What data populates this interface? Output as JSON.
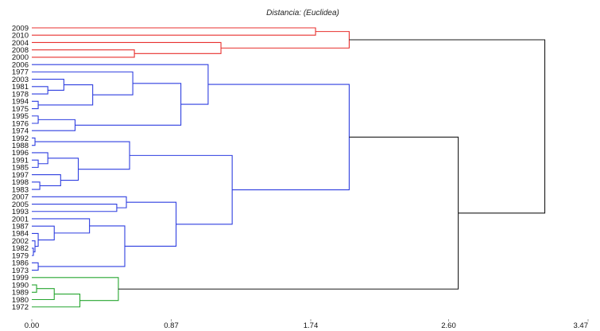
{
  "title": "Distancia: (Euclidea)",
  "colors": {
    "red": "#e8312f",
    "blue": "#2f3fe0",
    "green": "#27a630",
    "black": "#1a1a1a"
  },
  "chart_data": {
    "type": "dendrogram",
    "title": "Distancia: (Euclidea)",
    "xlim": [
      0,
      3.47
    ],
    "xticks": [
      "0.00",
      "0.87",
      "1.74",
      "2.60",
      "3.47"
    ],
    "xtick_values": [
      0,
      0.87,
      1.74,
      2.6,
      3.47
    ],
    "leaves": [
      "2009",
      "2010",
      "2004",
      "2008",
      "2000",
      "2006",
      "1977",
      "2003",
      "1981",
      "1978",
      "1994",
      "1975",
      "1995",
      "1976",
      "1974",
      "1992",
      "1988",
      "1996",
      "1991",
      "1985",
      "1997",
      "1998",
      "1983",
      "2007",
      "2005",
      "1993",
      "2001",
      "1987",
      "1984",
      "2002",
      "1982",
      "1979",
      "1986",
      "1973",
      "1999",
      "1990",
      "1989",
      "1980",
      "1972"
    ],
    "merges": [
      {
        "a": "2009",
        "b": "2010",
        "height": 1.77,
        "color": "red"
      },
      {
        "a": "2008",
        "b": "2000",
        "height": 0.64,
        "color": "red"
      },
      {
        "a": "2004",
        "b": "M2",
        "height": 1.18,
        "color": "red"
      },
      {
        "a": "M1",
        "b": "M3",
        "height": 1.98,
        "color": "red"
      },
      {
        "a": "1981",
        "b": "1978",
        "height": 0.1,
        "color": "blue"
      },
      {
        "a": "2003",
        "b": "M5",
        "height": 0.2,
        "color": "blue"
      },
      {
        "a": "1994",
        "b": "1975",
        "height": 0.04,
        "color": "blue"
      },
      {
        "a": "M6",
        "b": "M7",
        "height": 0.38,
        "color": "blue"
      },
      {
        "a": "1977",
        "b": "M8",
        "height": 0.63,
        "color": "blue"
      },
      {
        "a": "1995",
        "b": "1976",
        "height": 0.04,
        "color": "blue"
      },
      {
        "a": "M10",
        "b": "1974",
        "height": 0.27,
        "color": "blue"
      },
      {
        "a": "M9",
        "b": "M11",
        "height": 0.93,
        "color": "blue"
      },
      {
        "a": "2006",
        "b": "M12",
        "height": 1.1,
        "color": "blue"
      },
      {
        "a": "1992",
        "b": "1988",
        "height": 0.02,
        "color": "blue"
      },
      {
        "a": "1991",
        "b": "1985",
        "height": 0.04,
        "color": "blue"
      },
      {
        "a": "1996",
        "b": "M15",
        "height": 0.1,
        "color": "blue"
      },
      {
        "a": "1998",
        "b": "1983",
        "height": 0.05,
        "color": "blue"
      },
      {
        "a": "1997",
        "b": "M17",
        "height": 0.18,
        "color": "blue"
      },
      {
        "a": "M16",
        "b": "M18",
        "height": 0.29,
        "color": "blue"
      },
      {
        "a": "M14",
        "b": "M19",
        "height": 0.61,
        "color": "blue"
      },
      {
        "a": "2005",
        "b": "1993",
        "height": 0.53,
        "color": "blue"
      },
      {
        "a": "2007",
        "b": "M21",
        "height": 0.59,
        "color": "blue"
      },
      {
        "a": "1982",
        "b": "1979",
        "height": 0.01,
        "color": "blue"
      },
      {
        "a": "2002",
        "b": "M23",
        "height": 0.02,
        "color": "blue"
      },
      {
        "a": "1984",
        "b": "M24",
        "height": 0.04,
        "color": "blue"
      },
      {
        "a": "1987",
        "b": "M25",
        "height": 0.14,
        "color": "blue"
      },
      {
        "a": "2001",
        "b": "M26",
        "height": 0.36,
        "color": "blue"
      },
      {
        "a": "1986",
        "b": "1973",
        "height": 0.04,
        "color": "blue"
      },
      {
        "a": "M27",
        "b": "M28",
        "height": 0.58,
        "color": "blue"
      },
      {
        "a": "M22",
        "b": "M29",
        "height": 0.9,
        "color": "blue"
      },
      {
        "a": "M20",
        "b": "M30",
        "height": 1.25,
        "color": "blue"
      },
      {
        "a": "M13",
        "b": "M31",
        "height": 1.98,
        "color": "blue"
      },
      {
        "a": "1990",
        "b": "1989",
        "height": 0.03,
        "color": "green"
      },
      {
        "a": "M33",
        "b": "1980",
        "height": 0.14,
        "color": "green"
      },
      {
        "a": "M34",
        "b": "1972",
        "height": 0.3,
        "color": "green"
      },
      {
        "a": "1999",
        "b": "M35",
        "height": 0.54,
        "color": "green"
      },
      {
        "a": "M32",
        "b": "M36",
        "height": 2.66,
        "color": "black"
      },
      {
        "a": "M4",
        "b": "M37",
        "height": 3.2,
        "color": "black"
      }
    ]
  }
}
